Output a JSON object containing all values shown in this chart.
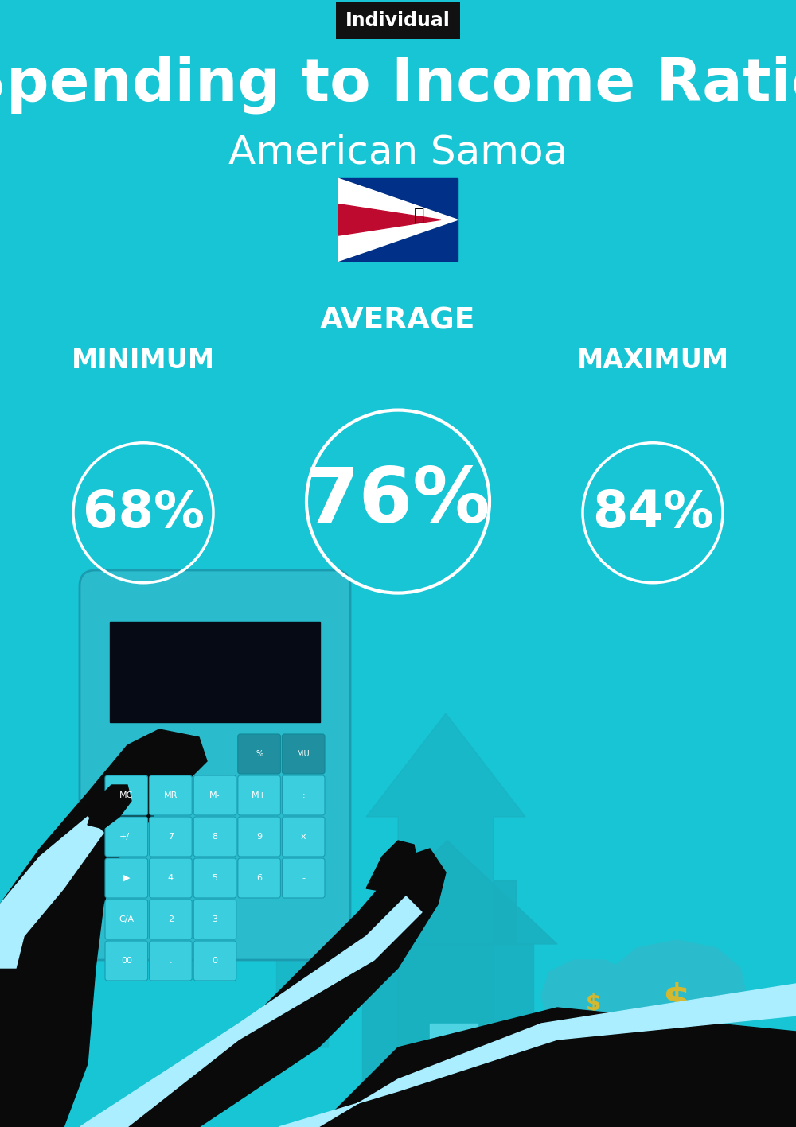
{
  "bg_color": "#17C5D5",
  "title_label": "Individual",
  "title_label_bg": "#111111",
  "title_label_color": "#ffffff",
  "main_title": "Spending to Income Ratio",
  "subtitle": "American Samoa",
  "average_label": "AVERAGE",
  "minimum_label": "MINIMUM",
  "maximum_label": "MAXIMUM",
  "min_value": "68%",
  "avg_value": "76%",
  "max_value": "84%",
  "circle_color": "#ffffff",
  "text_color": "#ffffff",
  "fig_width": 10.0,
  "fig_height": 14.17,
  "dpi": 100,
  "arrow_color": "#19AABB",
  "house_color": "#19AABB",
  "dark_color": "#0A0A0A",
  "cuff_color": "#AAEEFF",
  "calc_body_color": "#2ABCCC",
  "btn_color": "#3ACEDE",
  "btn_top_color": "#2090A0",
  "screen_color": "#050A15",
  "bag_color": "#2ABCCC",
  "dollar_color": "#D4B830"
}
